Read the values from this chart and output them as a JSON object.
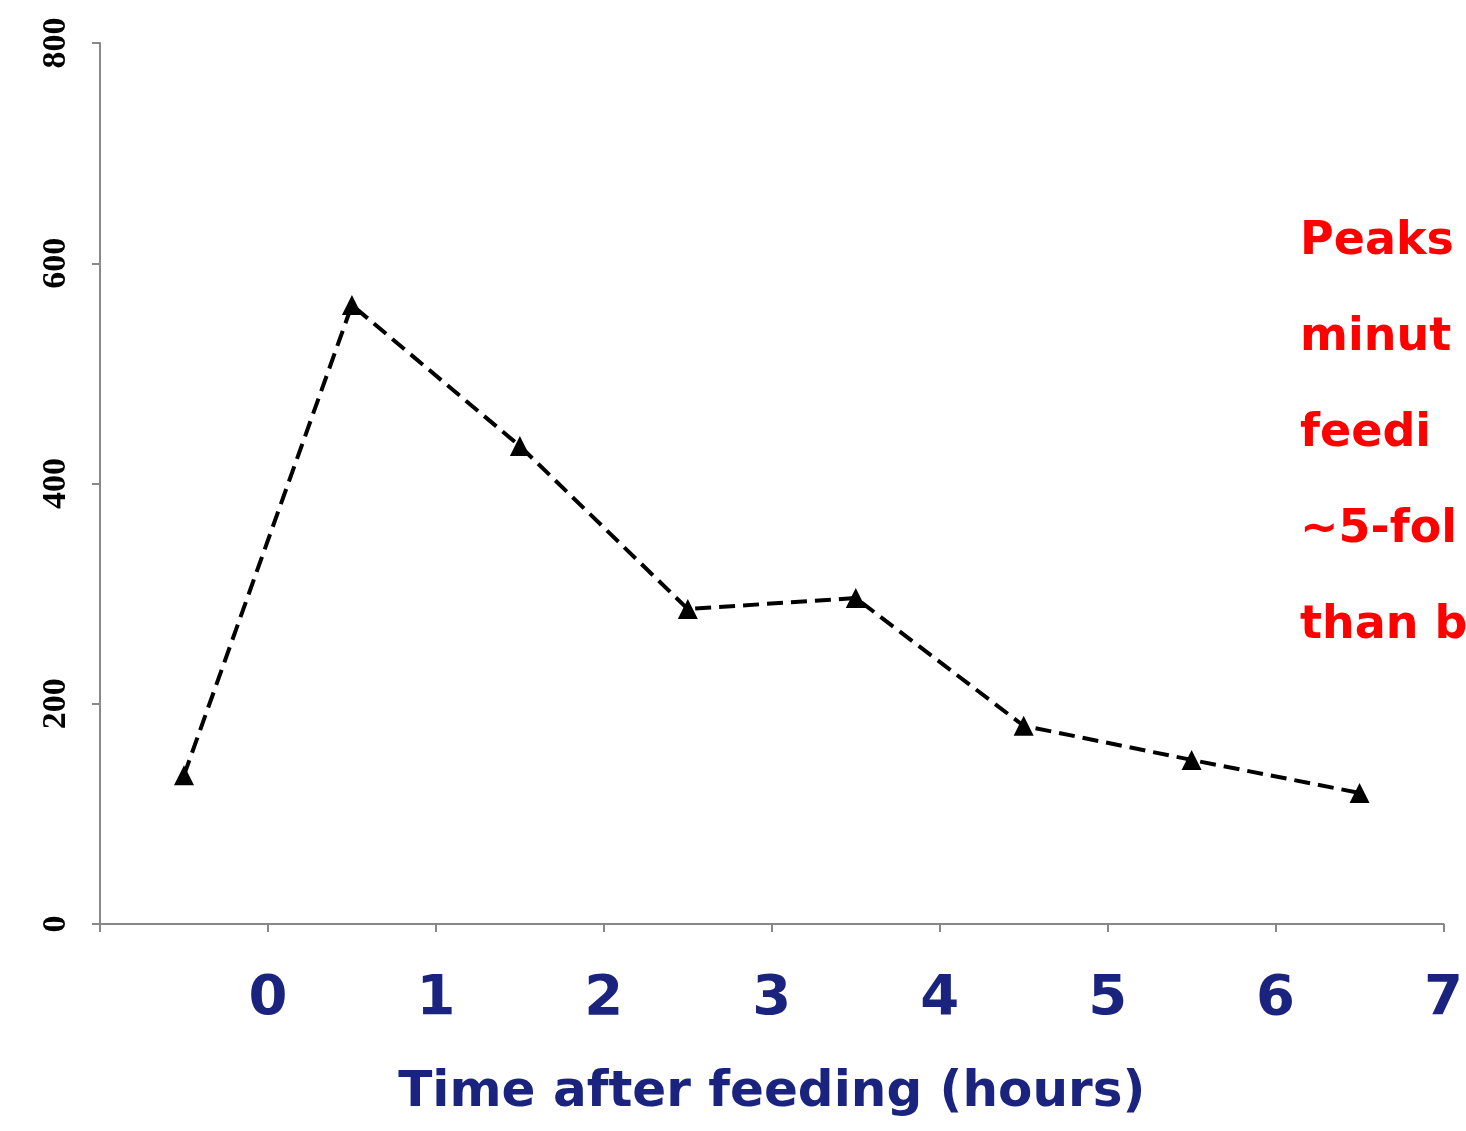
{
  "chart_data": {
    "type": "line",
    "xlabel": "Time after feeding (hours)",
    "x": [
      -0.5,
      0.5,
      1.5,
      2.5,
      3.5,
      4.5,
      5.5,
      6.5
    ],
    "series": [
      {
        "color": "#000000",
        "values": [
          135,
          562,
          434,
          286,
          296,
          180,
          149,
          119
        ]
      }
    ],
    "xlim": [
      -1,
      7
    ],
    "xticks": [
      {
        "value": -1,
        "label": null
      },
      0,
      1,
      2,
      3,
      4,
      5,
      6,
      7
    ],
    "ylim": [
      0,
      800
    ],
    "yticks": [
      0,
      200,
      400,
      600,
      800
    ],
    "grid": false,
    "marker": "triangle",
    "line_style": "dashed",
    "annotations": [
      "Peaks\nminut\nfeedi\n~5-fol\nthan b"
    ]
  }
}
